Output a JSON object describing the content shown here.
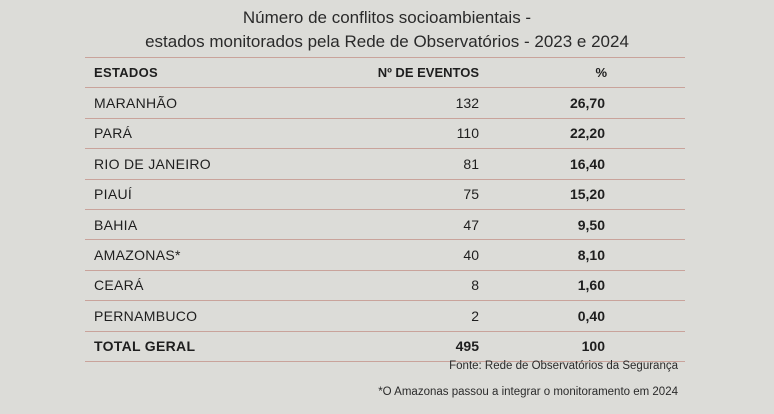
{
  "title_line1": "Número de conflitos socioambientais -",
  "title_line2": "estados monitorados pela Rede de Observatórios - 2023 e 2024",
  "headers": {
    "state": "ESTADOS",
    "events": "Nº DE EVENTOS",
    "percent": "%"
  },
  "rows": [
    {
      "state": "MARANHÃO",
      "events": "132",
      "percent": "26,70"
    },
    {
      "state": "PARÁ",
      "events": "110",
      "percent": "22,20"
    },
    {
      "state": "RIO DE JANEIRO",
      "events": "81",
      "percent": "16,40"
    },
    {
      "state": "PIAUÍ",
      "events": "75",
      "percent": "15,20"
    },
    {
      "state": "BAHIA",
      "events": "47",
      "percent": "9,50"
    },
    {
      "state": "AMAZONAS*",
      "events": "40",
      "percent": "8,10"
    },
    {
      "state": "CEARÁ",
      "events": "8",
      "percent": "1,60"
    },
    {
      "state": "PERNAMBUCO",
      "events": "2",
      "percent": "0,40"
    }
  ],
  "total": {
    "state": "TOTAL GERAL",
    "events": "495",
    "percent": "100"
  },
  "source_note": "Fonte: Rede de Observatórios da Segurança",
  "footnote": "*O Amazonas passou a integrar o monitoramento em 2024"
}
